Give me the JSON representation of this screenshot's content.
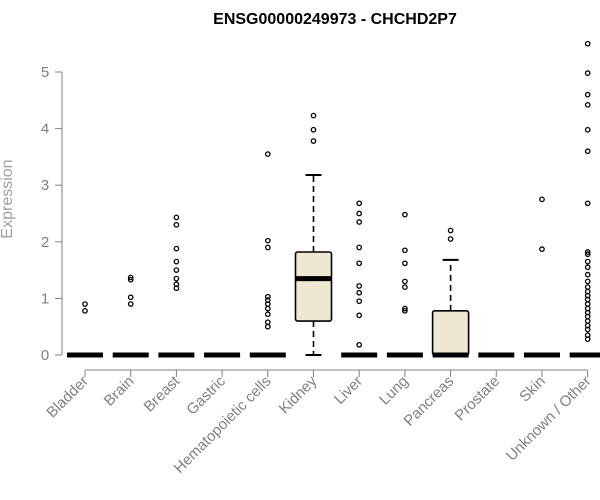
{
  "chart_data": {
    "type": "boxplot",
    "title": "ENSG00000249973 - CHCHD2P7",
    "xlabel": "",
    "ylabel": "Expression",
    "ylim": [
      0,
      5.6
    ],
    "yticks": [
      0,
      1,
      2,
      3,
      4,
      5
    ],
    "colors": {
      "box_fill": "#efe8d0",
      "stroke": "#000000",
      "axis": "#808080"
    },
    "categories": [
      "Bladder",
      "Brain",
      "Breast",
      "Gastric",
      "Hematopoietic cells",
      "Kidney",
      "Liver",
      "Lung",
      "Pancreas",
      "Prostate",
      "Skin",
      "Unknown / Other"
    ],
    "boxes": [
      {
        "category": "Bladder",
        "q1": 0,
        "median": 0,
        "q3": 0,
        "whisker_low": 0,
        "whisker_high": 0,
        "outliers": [
          0.78,
          0.9
        ]
      },
      {
        "category": "Brain",
        "q1": 0,
        "median": 0,
        "q3": 0,
        "whisker_low": 0,
        "whisker_high": 0,
        "outliers": [
          0.9,
          1.02,
          1.33,
          1.37
        ]
      },
      {
        "category": "Breast",
        "q1": 0,
        "median": 0,
        "q3": 0,
        "whisker_low": 0,
        "whisker_high": 0,
        "outliers": [
          1.18,
          1.25,
          1.35,
          1.5,
          1.65,
          1.88,
          2.3,
          2.43
        ]
      },
      {
        "category": "Gastric",
        "q1": 0,
        "median": 0,
        "q3": 0,
        "whisker_low": 0,
        "whisker_high": 0,
        "outliers": []
      },
      {
        "category": "Hematopoietic cells",
        "q1": 0,
        "median": 0,
        "q3": 0,
        "whisker_low": 0,
        "whisker_high": 0,
        "outliers": [
          0.5,
          0.58,
          0.72,
          0.82,
          0.9,
          0.97,
          1.03,
          1.9,
          2.02,
          3.55
        ]
      },
      {
        "category": "Kidney",
        "q1": 0.6,
        "median": 1.35,
        "q3": 1.82,
        "whisker_low": 0,
        "whisker_high": 3.18,
        "outliers": [
          3.78,
          3.98,
          4.23
        ]
      },
      {
        "category": "Liver",
        "q1": 0,
        "median": 0,
        "q3": 0,
        "whisker_low": 0,
        "whisker_high": 0,
        "outliers": [
          0.18,
          0.7,
          0.95,
          1.1,
          1.22,
          1.62,
          1.9,
          2.35,
          2.5,
          2.68
        ]
      },
      {
        "category": "Lung",
        "q1": 0,
        "median": 0,
        "q3": 0,
        "whisker_low": 0,
        "whisker_high": 0,
        "outliers": [
          0.78,
          0.82,
          1.2,
          1.3,
          1.62,
          1.85,
          2.48
        ]
      },
      {
        "category": "Pancreas",
        "q1": 0,
        "median": 0,
        "q3": 0.78,
        "whisker_low": 0,
        "whisker_high": 1.68,
        "outliers": [
          2.05,
          2.2
        ]
      },
      {
        "category": "Prostate",
        "q1": 0,
        "median": 0,
        "q3": 0,
        "whisker_low": 0,
        "whisker_high": 0,
        "outliers": []
      },
      {
        "category": "Skin",
        "q1": 0,
        "median": 0,
        "q3": 0,
        "whisker_low": 0,
        "whisker_high": 0,
        "outliers": [
          1.87,
          2.75
        ]
      },
      {
        "category": "Unknown / Other",
        "q1": 0,
        "median": 0,
        "q3": 0,
        "whisker_low": 0,
        "whisker_high": 0,
        "outliers": [
          0.28,
          0.35,
          0.45,
          0.52,
          0.6,
          0.68,
          0.75,
          0.82,
          0.9,
          0.98,
          1.05,
          1.12,
          1.2,
          1.3,
          1.42,
          1.55,
          1.65,
          1.78,
          1.82,
          2.68,
          3.6,
          3.98,
          4.42,
          4.6,
          4.98,
          5.5
        ]
      }
    ]
  }
}
